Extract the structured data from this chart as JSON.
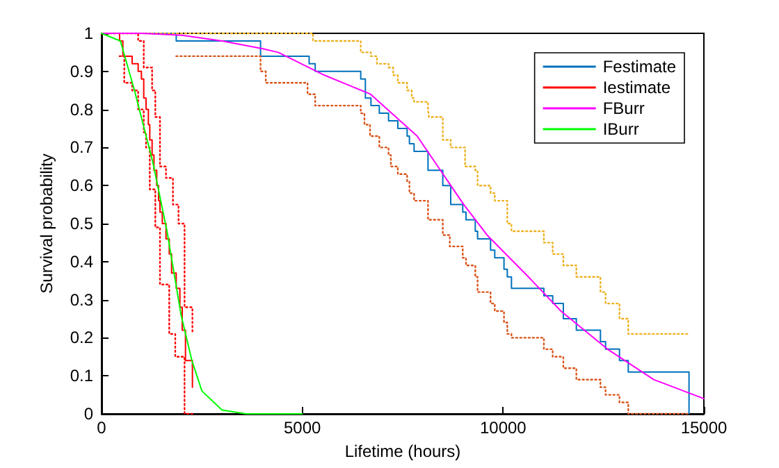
{
  "chart_data": {
    "type": "line",
    "xlabel": "Lifetime (hours)",
    "ylabel": "Survival probability",
    "xlim": [
      0,
      15000
    ],
    "xticks": [
      0,
      5000,
      10000,
      15000
    ],
    "ylim": [
      0,
      1
    ],
    "yticks": [
      0,
      0.1,
      0.2,
      0.3,
      0.4,
      0.5,
      0.6,
      0.7,
      0.8,
      0.9,
      1
    ],
    "grid": false,
    "legend": "top right",
    "marker": "none",
    "series": [
      {
        "name": "Festimate",
        "type": "step",
        "color": "#0072bd",
        "line_style": "solid",
        "x": [
          0,
          1860,
          3960,
          5170,
          5320,
          6455,
          6570,
          6709,
          6917,
          7147,
          7378,
          7610,
          7667,
          7783,
          8130,
          8498,
          8695,
          8995,
          9076,
          9307,
          9364,
          9688,
          9792,
          10022,
          10104,
          10208,
          11015,
          11235,
          11500,
          11824,
          12424,
          12551,
          12898,
          13117,
          14630
        ],
        "values": [
          1,
          0.98,
          0.94,
          0.92,
          0.9,
          0.88,
          0.83,
          0.81,
          0.79,
          0.77,
          0.75,
          0.73,
          0.71,
          0.69,
          0.64,
          0.6,
          0.55,
          0.53,
          0.51,
          0.48,
          0.46,
          0.43,
          0.41,
          0.38,
          0.36,
          0.33,
          0.31,
          0.29,
          0.25,
          0.22,
          0.19,
          0.17,
          0.14,
          0.11,
          0
        ]
      },
      {
        "type": "step",
        "color": "#d95319",
        "line_style": "dotted",
        "x": [
          1860,
          3960,
          4090,
          5130,
          5320,
          6455,
          6547,
          6686,
          6917,
          7147,
          7205,
          7378,
          7610,
          7667,
          7783,
          8130,
          8498,
          8672,
          8995,
          9076,
          9307,
          9364,
          9688,
          9792,
          10022,
          10104,
          10208,
          11015,
          11235,
          11500,
          11824,
          12424,
          12551,
          12898,
          13117,
          14630
        ],
        "values": [
          0.94,
          0.9,
          0.87,
          0.84,
          0.81,
          0.79,
          0.76,
          0.73,
          0.7,
          0.68,
          0.65,
          0.63,
          0.61,
          0.58,
          0.56,
          0.51,
          0.47,
          0.44,
          0.41,
          0.39,
          0.36,
          0.32,
          0.29,
          0.27,
          0.24,
          0.21,
          0.2,
          0.17,
          0.15,
          0.12,
          0.09,
          0.07,
          0.05,
          0.03,
          0,
          0
        ]
      },
      {
        "type": "step",
        "color": "#edb120",
        "line_style": "dotted",
        "x": [
          0,
          5265,
          6455,
          6709,
          6859,
          7147,
          7263,
          7378,
          7610,
          7725,
          7783,
          8130,
          8152,
          8498,
          8695,
          9053,
          9307,
          9364,
          9688,
          9792,
          10104,
          10208,
          11015,
          11235,
          11500,
          11824,
          12424,
          12551,
          12898,
          13117,
          14630
        ],
        "values": [
          1,
          0.98,
          0.95,
          0.94,
          0.92,
          0.91,
          0.89,
          0.87,
          0.85,
          0.83,
          0.82,
          0.8,
          0.78,
          0.72,
          0.7,
          0.65,
          0.64,
          0.6,
          0.58,
          0.56,
          0.5,
          0.48,
          0.45,
          0.42,
          0.39,
          0.36,
          0.32,
          0.29,
          0.25,
          0.21,
          0.21
        ]
      },
      {
        "name": "Iestimate",
        "type": "step",
        "color": "#ff0000",
        "line_style": "solid",
        "x": [
          0,
          450,
          531,
          762,
          912,
          993,
          1051,
          1108,
          1166,
          1201,
          1259,
          1305,
          1374,
          1420,
          1455,
          1513,
          1605,
          1686,
          1744,
          1859,
          1951,
          2009,
          2090,
          2263
        ],
        "values": [
          1,
          0.98,
          0.94,
          0.92,
          0.9,
          0.88,
          0.83,
          0.8,
          0.76,
          0.72,
          0.68,
          0.64,
          0.6,
          0.56,
          0.53,
          0.5,
          0.46,
          0.42,
          0.37,
          0.33,
          0.28,
          0.22,
          0.14,
          0.07
        ]
      },
      {
        "type": "step",
        "color": "#ff0000",
        "line_style": "dotted",
        "x": [
          450,
          566,
          762,
          912,
          1051,
          1108,
          1201,
          1339,
          1455,
          1686,
          1836,
          2067,
          2263
        ],
        "values": [
          0.94,
          0.87,
          0.85,
          0.8,
          0.74,
          0.7,
          0.59,
          0.49,
          0.34,
          0.21,
          0.15,
          0,
          0
        ]
      },
      {
        "type": "step",
        "color": "#ff0000",
        "line_style": "dotted",
        "x": [
          0,
          912,
          1051,
          1259,
          1339,
          1455,
          1605,
          1778,
          1917,
          2067,
          2263
        ],
        "values": [
          1,
          0.98,
          0.91,
          0.85,
          0.78,
          0.65,
          0.62,
          0.55,
          0.5,
          0.28,
          0.21
        ]
      },
      {
        "name": "FBurr",
        "color": "#ff00ff",
        "line_style": "solid",
        "x": [
          0,
          1000,
          2000,
          3000,
          4000,
          4400,
          5550,
          6700,
          7860,
          8440,
          9020,
          9600,
          10630,
          11440,
          12600,
          13750,
          15000
        ],
        "values": [
          1,
          1,
          0.995,
          0.98,
          0.96,
          0.95,
          0.89,
          0.84,
          0.73,
          0.64,
          0.55,
          0.47,
          0.36,
          0.27,
          0.17,
          0.09,
          0.04
        ]
      },
      {
        "name": "IBurr",
        "color": "#00ff00",
        "line_style": "solid",
        "x": [
          0,
          470,
          820,
          1280,
          1630,
          1980,
          2250,
          2500,
          3000,
          3600,
          5000
        ],
        "values": [
          1,
          0.98,
          0.85,
          0.66,
          0.48,
          0.26,
          0.14,
          0.06,
          0.01,
          0,
          0
        ]
      }
    ]
  }
}
